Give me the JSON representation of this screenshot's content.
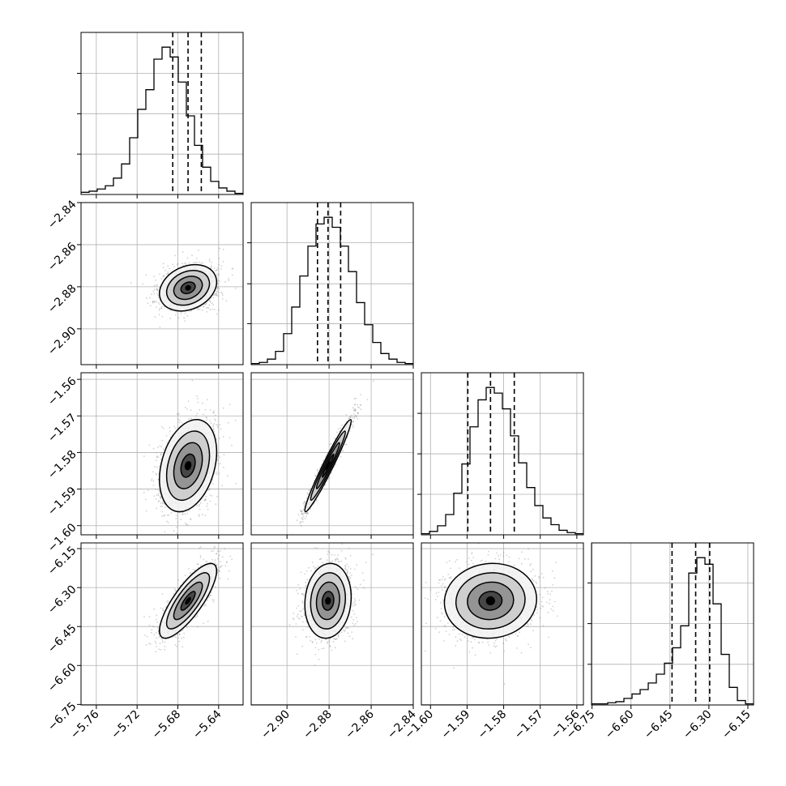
{
  "chart_data": {
    "type": "scatter",
    "plot_style": "corner",
    "grid": true,
    "n_params": 4,
    "params": [
      {
        "range": [
          -5.775,
          -5.616
        ],
        "ticks": [
          -5.76,
          -5.72,
          -5.68,
          -5.64
        ],
        "tick_labels": [
          "−5.76",
          "−5.72",
          "−5.68",
          "−5.64"
        ],
        "quantiles": [
          -5.685,
          -5.67,
          -5.657
        ],
        "mean": -5.67,
        "sd": 0.014
      },
      {
        "range": [
          -2.917,
          -2.84
        ],
        "ticks": [
          -2.9,
          -2.88,
          -2.86,
          -2.84
        ],
        "tick_labels": [
          "−2.90",
          "−2.88",
          "−2.86",
          "−2.84"
        ],
        "quantiles": [
          -2.8855,
          -2.8805,
          -2.8745
        ],
        "mean": -2.8805,
        "sd": 0.0055
      },
      {
        "range": [
          -1.6025,
          -1.5582
        ],
        "ticks": [
          -1.6,
          -1.59,
          -1.58,
          -1.57,
          -1.56
        ],
        "tick_labels": [
          "−1.60",
          "−1.59",
          "−1.58",
          "−1.57",
          "−1.56"
        ],
        "quantiles": [
          -1.5898,
          -1.5836,
          -1.5771
        ],
        "mean": -1.5836,
        "sd": 0.0063
      },
      {
        "range": [
          -6.752,
          -6.128
        ],
        "ticks": [
          -6.75,
          -6.6,
          -6.45,
          -6.3,
          -6.15
        ],
        "tick_labels": [
          "−6.75",
          "−6.60",
          "−6.45",
          "−6.30",
          "−6.15"
        ],
        "quantiles": [
          -6.442,
          -6.351,
          -6.297
        ],
        "mean": -6.351,
        "sd": 0.072
      }
    ],
    "correlations": [
      [
        1.0,
        0.25,
        0.3,
        0.8
      ],
      [
        0.25,
        1.0,
        0.97,
        0.1
      ],
      [
        0.3,
        0.97,
        1.0,
        0.05
      ],
      [
        0.8,
        0.1,
        0.05,
        1.0
      ]
    ],
    "histograms": [
      {
        "bins": 20,
        "counts": [
          2,
          3,
          5,
          8,
          15,
          28,
          52,
          78,
          96,
          124,
          135,
          126,
          103,
          72,
          45,
          25,
          12,
          6,
          3,
          1
        ]
      },
      {
        "bins": 20,
        "counts": [
          1,
          2,
          5,
          12,
          28,
          52,
          80,
          107,
          127,
          133,
          124,
          107,
          84,
          56,
          36,
          20,
          10,
          5,
          2,
          1
        ]
      },
      {
        "bins": 20,
        "counts": [
          1,
          3,
          8,
          18,
          37,
          63,
          96,
          120,
          131,
          126,
          112,
          88,
          64,
          42,
          26,
          15,
          9,
          4,
          2,
          1
        ]
      },
      {
        "bins": 20,
        "counts": [
          1,
          1,
          2,
          3,
          6,
          10,
          14,
          20,
          28,
          38,
          52,
          72,
          120,
          134,
          128,
          92,
          46,
          16,
          4,
          1
        ]
      }
    ]
  }
}
